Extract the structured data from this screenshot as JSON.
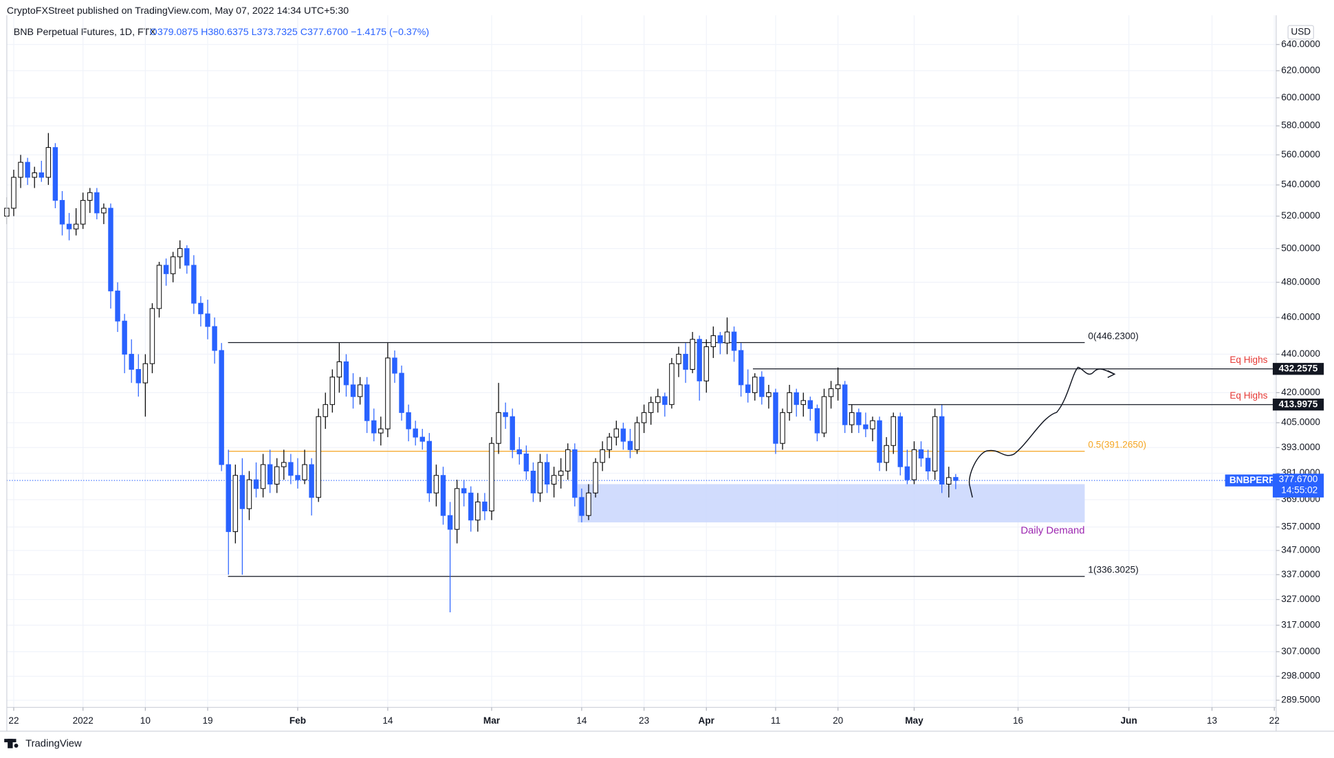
{
  "chart_data": {
    "type": "candlestick",
    "attribution": "CryptoFXStreet published on TradingView.com, May 07, 2022 14:34 UTC+5:30",
    "title": "BNB Perpetual Futures, 1D, FTX",
    "ohlc_line": "O379.0875 H380.6375 L373.7325 C377.6700 −1.4175 (−0.37%)",
    "currency": "USD",
    "footer": "TradingView",
    "log_scale": true,
    "grid": true,
    "up_color": "#ffffff",
    "up_border": "#000000",
    "down_color": "#2962ff",
    "ylim": [
      287,
      663
    ],
    "yticks": [
      {
        "value": 640,
        "label": "640.0000"
      },
      {
        "value": 620,
        "label": "620.0000"
      },
      {
        "value": 600,
        "label": "600.0000"
      },
      {
        "value": 580,
        "label": "580.0000"
      },
      {
        "value": 560,
        "label": "560.0000"
      },
      {
        "value": 540,
        "label": "540.0000"
      },
      {
        "value": 520,
        "label": "520.0000"
      },
      {
        "value": 500,
        "label": "500.0000"
      },
      {
        "value": 480,
        "label": "480.0000"
      },
      {
        "value": 460,
        "label": "460.0000"
      },
      {
        "value": 440,
        "label": "440.0000"
      },
      {
        "value": 420,
        "label": "420.0000"
      },
      {
        "value": 405,
        "label": "405.0000"
      },
      {
        "value": 393,
        "label": "393.0000"
      },
      {
        "value": 381,
        "label": "381.0000"
      },
      {
        "value": 369,
        "label": "369.0000"
      },
      {
        "value": 357,
        "label": "357.0000"
      },
      {
        "value": 347,
        "label": "347.0000"
      },
      {
        "value": 337,
        "label": "337.0000"
      },
      {
        "value": 327,
        "label": "327.0000"
      },
      {
        "value": 317,
        "label": "317.0000"
      },
      {
        "value": 307,
        "label": "307.0000"
      },
      {
        "value": 298,
        "label": "298.0000"
      },
      {
        "value": 289.5,
        "label": "289.5000"
      }
    ],
    "xlim": [
      0,
      184
    ],
    "xticks": [
      {
        "value": 1,
        "label": "22"
      },
      {
        "value": 11,
        "label": "2022"
      },
      {
        "value": 20,
        "label": "10"
      },
      {
        "value": 29,
        "label": "19"
      },
      {
        "value": 42,
        "label": "Feb"
      },
      {
        "value": 55,
        "label": "14"
      },
      {
        "value": 70,
        "label": "Mar"
      },
      {
        "value": 83,
        "label": "14"
      },
      {
        "value": 92,
        "label": "23"
      },
      {
        "value": 101,
        "label": "Apr"
      },
      {
        "value": 111,
        "label": "11"
      },
      {
        "value": 120,
        "label": "20"
      },
      {
        "value": 131,
        "label": "May"
      },
      {
        "value": 146,
        "label": "16"
      },
      {
        "value": 162,
        "label": "Jun"
      },
      {
        "value": 174,
        "label": "13"
      },
      {
        "value": 183,
        "label": "22"
      }
    ],
    "candles": [
      [
        520,
        532,
        515,
        525
      ],
      [
        525,
        550,
        520,
        545
      ],
      [
        545,
        560,
        538,
        555
      ],
      [
        555,
        558,
        540,
        545
      ],
      [
        545,
        552,
        538,
        548
      ],
      [
        548,
        556,
        542,
        545
      ],
      [
        545,
        575,
        540,
        565
      ],
      [
        565,
        568,
        525,
        530
      ],
      [
        530,
        536,
        508,
        515
      ],
      [
        515,
        522,
        505,
        512
      ],
      [
        512,
        525,
        508,
        515
      ],
      [
        515,
        535,
        512,
        530
      ],
      [
        530,
        538,
        522,
        535
      ],
      [
        535,
        538,
        518,
        522
      ],
      [
        522,
        528,
        515,
        525
      ],
      [
        525,
        528,
        465,
        475
      ],
      [
        475,
        480,
        452,
        458
      ],
      [
        458,
        462,
        430,
        440
      ],
      [
        440,
        448,
        425,
        432
      ],
      [
        432,
        440,
        418,
        425
      ],
      [
        425,
        440,
        408,
        435
      ],
      [
        435,
        468,
        430,
        465
      ],
      [
        465,
        492,
        460,
        490
      ],
      [
        490,
        494,
        478,
        485
      ],
      [
        485,
        498,
        480,
        495
      ],
      [
        495,
        505,
        488,
        500
      ],
      [
        500,
        502,
        485,
        490
      ],
      [
        490,
        496,
        462,
        468
      ],
      [
        468,
        472,
        455,
        462
      ],
      [
        462,
        470,
        448,
        455
      ],
      [
        455,
        460,
        435,
        442
      ],
      [
        442,
        446,
        382,
        385
      ],
      [
        385,
        392,
        337,
        355
      ],
      [
        355,
        385,
        350,
        380
      ],
      [
        380,
        388,
        337,
        365
      ],
      [
        365,
        382,
        360,
        378
      ],
      [
        378,
        386,
        370,
        374
      ],
      [
        374,
        390,
        370,
        385
      ],
      [
        385,
        392,
        372,
        376
      ],
      [
        376,
        388,
        372,
        384
      ],
      [
        384,
        392,
        378,
        386
      ],
      [
        386,
        390,
        376,
        380
      ],
      [
        380,
        388,
        374,
        378
      ],
      [
        378,
        392,
        376,
        385
      ],
      [
        385,
        388,
        362,
        370
      ],
      [
        370,
        412,
        368,
        408
      ],
      [
        408,
        420,
        402,
        414
      ],
      [
        414,
        432,
        410,
        428
      ],
      [
        428,
        446,
        420,
        436
      ],
      [
        436,
        440,
        418,
        424
      ],
      [
        424,
        430,
        412,
        418
      ],
      [
        418,
        428,
        414,
        424
      ],
      [
        424,
        428,
        400,
        406
      ],
      [
        406,
        412,
        396,
        400
      ],
      [
        400,
        408,
        394,
        402
      ],
      [
        402,
        446,
        398,
        438
      ],
      [
        438,
        442,
        425,
        430
      ],
      [
        430,
        434,
        406,
        410
      ],
      [
        410,
        414,
        396,
        402
      ],
      [
        402,
        406,
        394,
        398
      ],
      [
        398,
        402,
        392,
        396
      ],
      [
        396,
        400,
        368,
        372
      ],
      [
        372,
        385,
        366,
        380
      ],
      [
        380,
        384,
        358,
        362
      ],
      [
        362,
        368,
        322,
        356
      ],
      [
        356,
        378,
        350,
        374
      ],
      [
        374,
        378,
        366,
        372
      ],
      [
        372,
        375,
        355,
        360
      ],
      [
        360,
        372,
        355,
        368
      ],
      [
        368,
        372,
        360,
        364
      ],
      [
        364,
        398,
        360,
        395
      ],
      [
        395,
        425,
        390,
        410
      ],
      [
        410,
        415,
        402,
        408
      ],
      [
        408,
        412,
        388,
        392
      ],
      [
        392,
        398,
        385,
        390
      ],
      [
        390,
        394,
        378,
        382
      ],
      [
        382,
        386,
        368,
        372
      ],
      [
        372,
        390,
        368,
        386
      ],
      [
        386,
        390,
        372,
        376
      ],
      [
        376,
        384,
        370,
        380
      ],
      [
        380,
        388,
        374,
        382
      ],
      [
        382,
        395,
        378,
        392
      ],
      [
        392,
        395,
        366,
        370
      ],
      [
        370,
        374,
        359,
        362
      ],
      [
        362,
        376,
        360,
        372
      ],
      [
        372,
        388,
        370,
        386
      ],
      [
        386,
        396,
        382,
        392
      ],
      [
        392,
        400,
        388,
        398
      ],
      [
        398,
        406,
        394,
        402
      ],
      [
        402,
        405,
        392,
        396
      ],
      [
        396,
        402,
        388,
        392
      ],
      [
        392,
        408,
        390,
        405
      ],
      [
        405,
        414,
        400,
        410
      ],
      [
        410,
        418,
        404,
        415
      ],
      [
        415,
        422,
        410,
        418
      ],
      [
        418,
        420,
        408,
        414
      ],
      [
        414,
        438,
        412,
        435
      ],
      [
        435,
        444,
        428,
        440
      ],
      [
        440,
        446,
        425,
        432
      ],
      [
        432,
        452,
        430,
        448
      ],
      [
        448,
        450,
        416,
        426
      ],
      [
        426,
        448,
        420,
        444
      ],
      [
        444,
        455,
        438,
        450
      ],
      [
        450,
        452,
        440,
        446
      ],
      [
        446,
        460,
        440,
        452
      ],
      [
        452,
        455,
        436,
        442
      ],
      [
        442,
        446,
        418,
        424
      ],
      [
        424,
        432,
        415,
        420
      ],
      [
        420,
        430,
        416,
        428
      ],
      [
        428,
        431,
        414,
        418
      ],
      [
        418,
        424,
        412,
        420
      ],
      [
        420,
        422,
        390,
        395
      ],
      [
        395,
        412,
        392,
        410
      ],
      [
        410,
        424,
        406,
        420
      ],
      [
        420,
        422,
        408,
        414
      ],
      [
        414,
        420,
        408,
        416
      ],
      [
        416,
        418,
        406,
        412
      ],
      [
        412,
        414,
        396,
        400
      ],
      [
        400,
        422,
        398,
        418
      ],
      [
        418,
        426,
        412,
        422
      ],
      [
        422,
        433,
        416,
        424
      ],
      [
        424,
        426,
        400,
        404
      ],
      [
        404,
        414,
        400,
        410
      ],
      [
        410,
        412,
        400,
        404
      ],
      [
        404,
        410,
        398,
        402
      ],
      [
        402,
        408,
        396,
        406
      ],
      [
        406,
        408,
        382,
        386
      ],
      [
        386,
        398,
        382,
        394
      ],
      [
        394,
        410,
        390,
        408
      ],
      [
        408,
        410,
        380,
        384
      ],
      [
        384,
        392,
        376,
        378
      ],
      [
        378,
        396,
        376,
        392
      ],
      [
        392,
        396,
        384,
        388
      ],
      [
        388,
        392,
        378,
        382
      ],
      [
        382,
        412,
        378,
        408
      ],
      [
        408,
        414,
        372,
        376
      ],
      [
        376,
        384,
        370,
        379
      ],
      [
        379.0875,
        380.6375,
        373.7325,
        377.67
      ]
    ],
    "levels": [
      {
        "label": "0(446.2300)",
        "value": 446.23,
        "color": "#131722"
      },
      {
        "label": "0.5(391.2650)",
        "value": 391.265,
        "color": "#f5a623"
      },
      {
        "label": "1(336.3025)",
        "value": 336.3025,
        "color": "#131722"
      }
    ],
    "eq_highs": [
      {
        "label": "Eq Highs",
        "value": 432.2575,
        "value_label": "432.2575"
      },
      {
        "label": "Eq Highs",
        "value": 413.9975,
        "value_label": "413.9975"
      }
    ],
    "eq_color": "#e53935",
    "demand_zone": {
      "label": "Daily Demand",
      "top": 376,
      "bottom": 359,
      "color": "#c9d6fd",
      "label_color": "#9c27b0"
    },
    "last_price": {
      "symbol": "BNBPERP",
      "value": 377.67,
      "value_label": "377.6700",
      "countdown": "14:55:02",
      "color": "#2962ff"
    }
  }
}
